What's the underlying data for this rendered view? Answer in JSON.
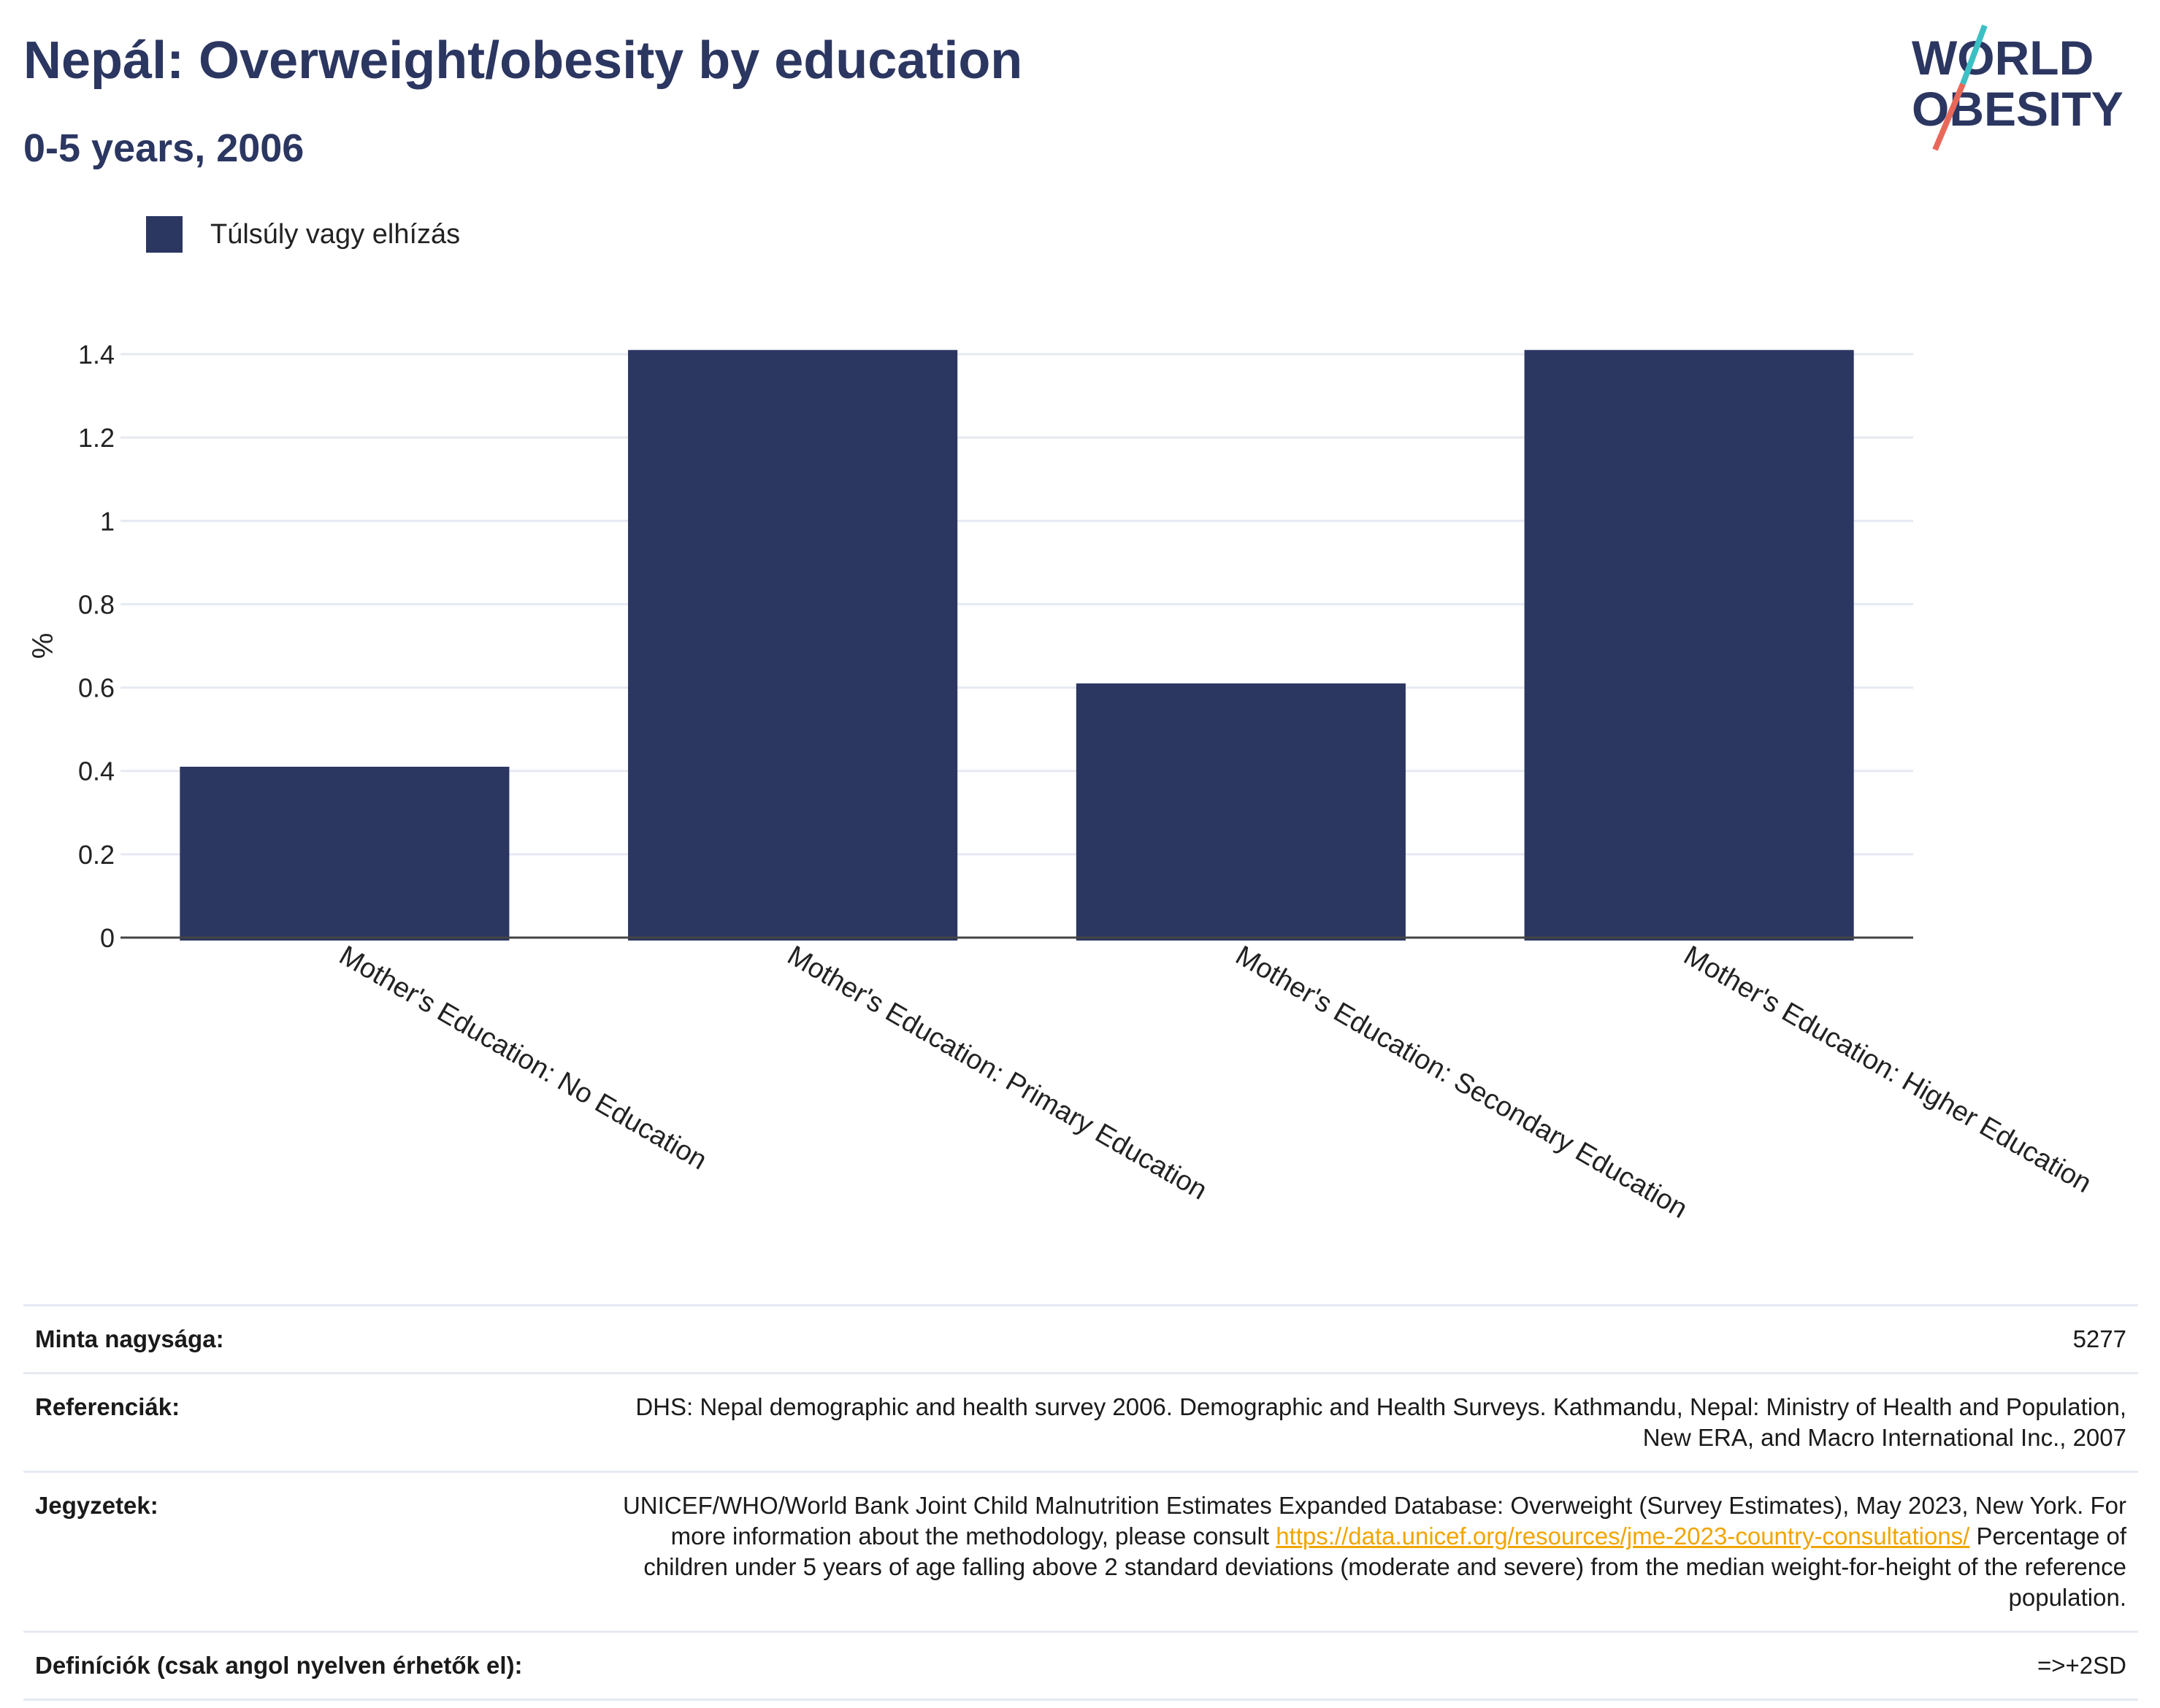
{
  "header": {
    "title": "Nepál: Overweight/obesity by education",
    "subtitle": "0-5 years, 2006"
  },
  "logo": {
    "line1": "WORLD",
    "line2": "OBESITY",
    "accent_colors": [
      "#3cc0c3",
      "#e8685a"
    ]
  },
  "chart_data": {
    "type": "bar",
    "categories": [
      "Mother's Education: No Education",
      "Mother's Education: Primary Education",
      "Mother's Education: Secondary Education",
      "Mother's Education: Higher Education"
    ],
    "series": [
      {
        "name": "Túlsúly vagy elhízás",
        "values": [
          0.41,
          1.41,
          0.61,
          1.41
        ],
        "color": "#2b3661"
      }
    ],
    "ylabel": "%",
    "ylim": [
      0,
      1.4
    ],
    "yticks": [
      "0",
      "0.2",
      "0.4",
      "0.6",
      "0.8",
      "1",
      "1.2",
      "1.4"
    ],
    "ytick_values": [
      0,
      0.2,
      0.4,
      0.6,
      0.8,
      1,
      1.2,
      1.4
    ],
    "grid": true,
    "legend_position": "top-left"
  },
  "info": {
    "sample_label": "Minta nagysága:",
    "sample_value": "5277",
    "references_label": "Referenciák:",
    "references_value": "DHS: Nepal demographic and health survey 2006. Demographic and Health Surveys. Kathmandu, Nepal: Ministry of Health and Population, New ERA, and Macro International Inc., 2007",
    "notes_label": "Jegyzetek:",
    "notes_value_before": "UNICEF/WHO/World Bank Joint Child Malnutrition Estimates Expanded Database: Overweight (Survey Estimates), May 2023, New York. For more information about the methodology, please consult ",
    "notes_link": "https://data.unicef.org/resources/jme-2023-country-consultations/",
    "notes_value_after": " Percentage of children under 5 years of age falling above 2 standard deviations (moderate and severe) from the median weight-for-height of the reference population.",
    "definitions_label": "Definíciók (csak angol nyelven érhetők el):",
    "definitions_value": "=>+2SD"
  }
}
